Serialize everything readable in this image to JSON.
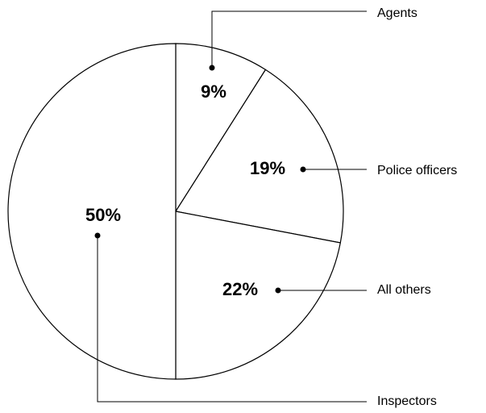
{
  "chart_data": {
    "type": "pie",
    "categories": [
      "Agents",
      "Police officers",
      "All others",
      "Inspectors"
    ],
    "values": [
      9,
      19,
      22,
      50
    ],
    "value_labels": [
      "9%",
      "19%",
      "22%",
      "50%"
    ],
    "colors": [
      "#ffffff",
      "#ffffff",
      "#ffffff",
      "#ffffff"
    ],
    "start_angle": 0,
    "direction": "clockwise"
  }
}
